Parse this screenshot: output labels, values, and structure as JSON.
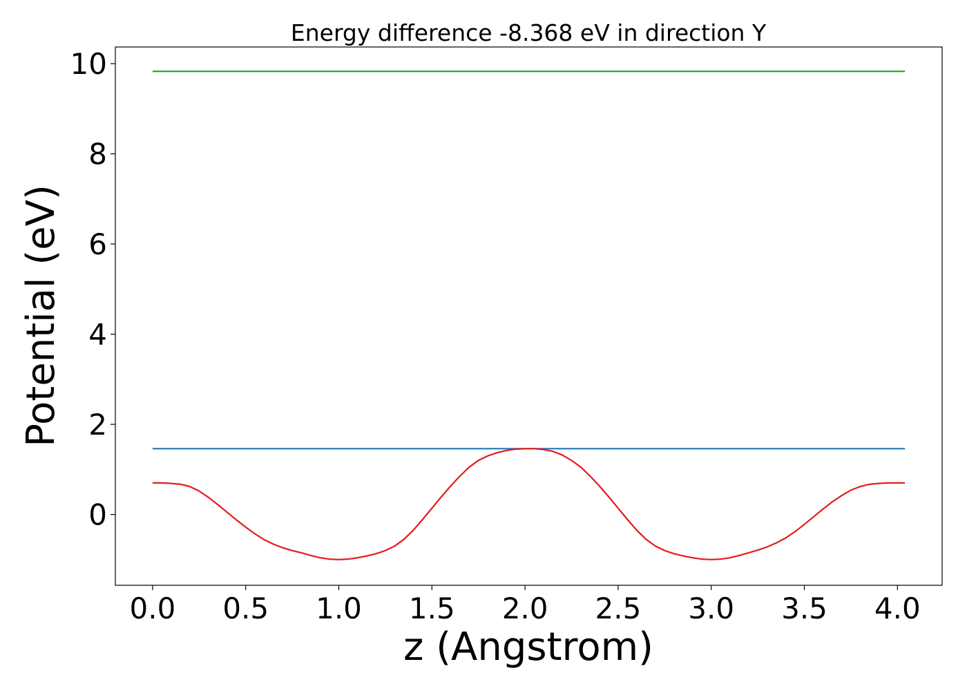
{
  "chart_data": {
    "type": "line",
    "title": "Energy difference -8.368 eV in direction Y",
    "xlabel": "z (Angstrom)",
    "ylabel": "Potential (eV)",
    "xlim": [
      -0.2,
      4.24
    ],
    "ylim": [
      -1.57,
      10.37
    ],
    "xticks": [
      0.0,
      0.5,
      1.0,
      1.5,
      2.0,
      2.5,
      3.0,
      3.5,
      4.0
    ],
    "xtick_labels": [
      "0.0",
      "0.5",
      "1.0",
      "1.5",
      "2.0",
      "2.5",
      "3.0",
      "3.5",
      "4.0"
    ],
    "yticks": [
      0,
      2,
      4,
      6,
      8,
      10
    ],
    "ytick_labels": [
      "0",
      "2",
      "4",
      "6",
      "8",
      "10"
    ],
    "grid": false,
    "series": [
      {
        "color": "#2ca02c",
        "x": [
          0.0,
          4.04
        ],
        "y": [
          9.83,
          9.83
        ]
      },
      {
        "color": "#1f77b4",
        "x": [
          0.0,
          4.04
        ],
        "y": [
          1.46,
          1.46
        ]
      },
      {
        "color": "#e31a1c",
        "x": [
          0.0,
          0.05,
          0.1,
          0.15,
          0.2,
          0.25,
          0.3,
          0.35,
          0.4,
          0.45,
          0.5,
          0.55,
          0.6,
          0.65,
          0.7,
          0.75,
          0.8,
          0.85,
          0.9,
          0.95,
          1.0,
          1.05,
          1.1,
          1.15,
          1.2,
          1.25,
          1.3,
          1.35,
          1.4,
          1.45,
          1.5,
          1.55,
          1.6,
          1.65,
          1.7,
          1.75,
          1.8,
          1.85,
          1.9,
          1.95,
          2.0,
          2.05,
          2.1,
          2.15,
          2.2,
          2.25,
          2.3,
          2.35,
          2.4,
          2.45,
          2.5,
          2.55,
          2.6,
          2.65,
          2.7,
          2.75,
          2.8,
          2.85,
          2.9,
          2.95,
          3.0,
          3.05,
          3.1,
          3.15,
          3.2,
          3.25,
          3.3,
          3.35,
          3.4,
          3.45,
          3.5,
          3.55,
          3.6,
          3.65,
          3.7,
          3.75,
          3.8,
          3.85,
          3.9,
          3.95,
          4.0,
          4.04
        ],
        "y": [
          0.7,
          0.7,
          0.69,
          0.67,
          0.62,
          0.52,
          0.38,
          0.22,
          0.05,
          -0.12,
          -0.28,
          -0.43,
          -0.56,
          -0.66,
          -0.74,
          -0.8,
          -0.85,
          -0.91,
          -0.96,
          -0.99,
          -1.0,
          -0.99,
          -0.96,
          -0.92,
          -0.87,
          -0.8,
          -0.7,
          -0.55,
          -0.35,
          -0.11,
          0.14,
          0.39,
          0.63,
          0.85,
          1.05,
          1.2,
          1.3,
          1.37,
          1.42,
          1.45,
          1.46,
          1.46,
          1.44,
          1.4,
          1.32,
          1.2,
          1.05,
          0.85,
          0.63,
          0.39,
          0.14,
          -0.11,
          -0.35,
          -0.55,
          -0.7,
          -0.8,
          -0.87,
          -0.92,
          -0.96,
          -0.99,
          -1.0,
          -0.99,
          -0.96,
          -0.91,
          -0.85,
          -0.79,
          -0.72,
          -0.63,
          -0.52,
          -0.38,
          -0.22,
          -0.05,
          0.12,
          0.28,
          0.42,
          0.54,
          0.62,
          0.67,
          0.69,
          0.7,
          0.7,
          0.7
        ]
      }
    ]
  }
}
